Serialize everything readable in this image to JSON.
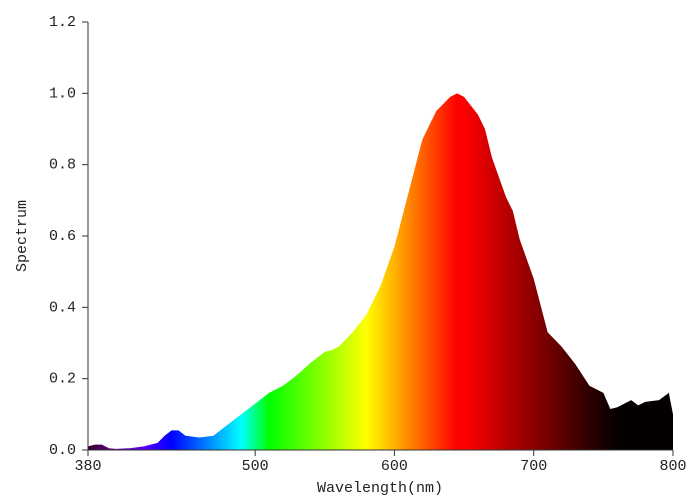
{
  "chart_data": {
    "type": "area",
    "x_label": "Wavelength(nm)",
    "y_label": "Spectrum",
    "x": [
      380,
      385,
      390,
      395,
      400,
      410,
      420,
      430,
      435,
      440,
      445,
      450,
      460,
      470,
      480,
      490,
      500,
      510,
      520,
      530,
      540,
      550,
      555,
      560,
      570,
      580,
      590,
      600,
      610,
      620,
      630,
      640,
      645,
      650,
      660,
      665,
      670,
      680,
      685,
      690,
      700,
      710,
      720,
      730,
      740,
      750,
      755,
      760,
      770,
      775,
      780,
      790,
      797,
      800
    ],
    "series": [
      {
        "values": [
          0.01,
          0.015,
          0.015,
          0.005,
          0.003,
          0.005,
          0.01,
          0.02,
          0.04,
          0.055,
          0.055,
          0.04,
          0.035,
          0.04,
          0.07,
          0.1,
          0.13,
          0.16,
          0.18,
          0.21,
          0.245,
          0.275,
          0.28,
          0.29,
          0.33,
          0.38,
          0.46,
          0.57,
          0.72,
          0.87,
          0.95,
          0.99,
          1.0,
          0.99,
          0.94,
          0.9,
          0.82,
          0.71,
          0.67,
          0.59,
          0.48,
          0.33,
          0.29,
          0.24,
          0.18,
          0.16,
          0.115,
          0.12,
          0.14,
          0.125,
          0.135,
          0.14,
          0.16,
          0.1
        ]
      }
    ],
    "xlim": [
      380,
      800
    ],
    "xticks": [
      380,
      500,
      600,
      700,
      800
    ],
    "ylim": [
      0,
      1.2
    ],
    "yticks": [
      {
        "value": 0,
        "label": "0.0"
      },
      0.2,
      0.4,
      0.6,
      0.8,
      {
        "value": 1,
        "label": "1.0"
      },
      1.2
    ]
  }
}
